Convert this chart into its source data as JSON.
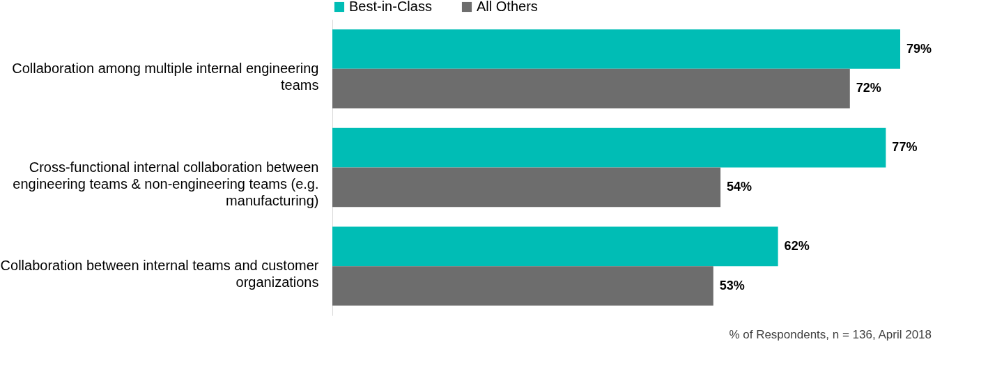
{
  "chart_data": {
    "type": "bar",
    "orientation": "horizontal",
    "categories": [
      "Collaboration among multiple internal engineering teams",
      "Cross-functional internal collaboration between engineering teams & non-engineering teams (e.g. manufacturing)",
      "Collaboration between internal teams and customer organizations"
    ],
    "series": [
      {
        "name": "Best-in-Class",
        "color": "#00bdb5",
        "values": [
          79,
          77,
          62
        ],
        "value_labels": [
          "79%",
          "77%",
          "62%"
        ]
      },
      {
        "name": "All Others",
        "color": "#6d6d6d",
        "values": [
          72,
          54,
          53
        ],
        "value_labels": [
          "72%",
          "54%",
          "53%"
        ]
      }
    ],
    "tick_labels": "y",
    "legend": "top",
    "grid": false,
    "annotations": [
      "% of Respondents, n = 136, April 2018"
    ]
  }
}
